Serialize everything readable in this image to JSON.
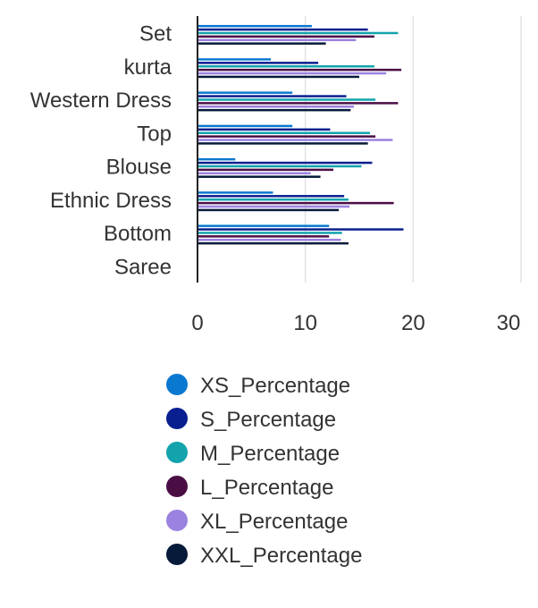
{
  "chart_data": {
    "type": "bar",
    "orientation": "horizontal",
    "title": "",
    "xlabel": "",
    "ylabel": "",
    "xlim": [
      0,
      30
    ],
    "xticks": [
      0,
      10,
      20,
      30
    ],
    "grid": true,
    "legend_position": "bottom",
    "categories": [
      "Set",
      "kurta",
      "Western Dress",
      "Top",
      "Blouse",
      "Ethnic Dress",
      "Bottom",
      "Saree"
    ],
    "series": [
      {
        "name": "XS_Percentage",
        "color": "#0b78d0",
        "values": [
          10.6,
          6.8,
          8.8,
          8.8,
          3.5,
          7.0,
          12.2,
          0
        ]
      },
      {
        "name": "S_Percentage",
        "color": "#0a1f8f",
        "values": [
          15.8,
          11.2,
          13.8,
          12.3,
          16.2,
          13.6,
          19.1,
          0
        ]
      },
      {
        "name": "M_Percentage",
        "color": "#12a3ad",
        "values": [
          18.6,
          16.4,
          16.5,
          16.0,
          15.2,
          14.0,
          13.4,
          0
        ]
      },
      {
        "name": "L_Percentage",
        "color": "#4a0e45",
        "values": [
          16.4,
          18.9,
          18.6,
          16.5,
          12.6,
          18.2,
          12.2,
          0
        ]
      },
      {
        "name": "XL_Percentage",
        "color": "#9b82e0",
        "values": [
          14.7,
          17.5,
          14.5,
          18.1,
          10.5,
          14.1,
          13.3,
          0
        ]
      },
      {
        "name": "XXL_Percentage",
        "color": "#061a3a",
        "values": [
          11.9,
          15.0,
          14.2,
          15.8,
          11.4,
          13.1,
          14.0,
          0
        ]
      }
    ]
  }
}
